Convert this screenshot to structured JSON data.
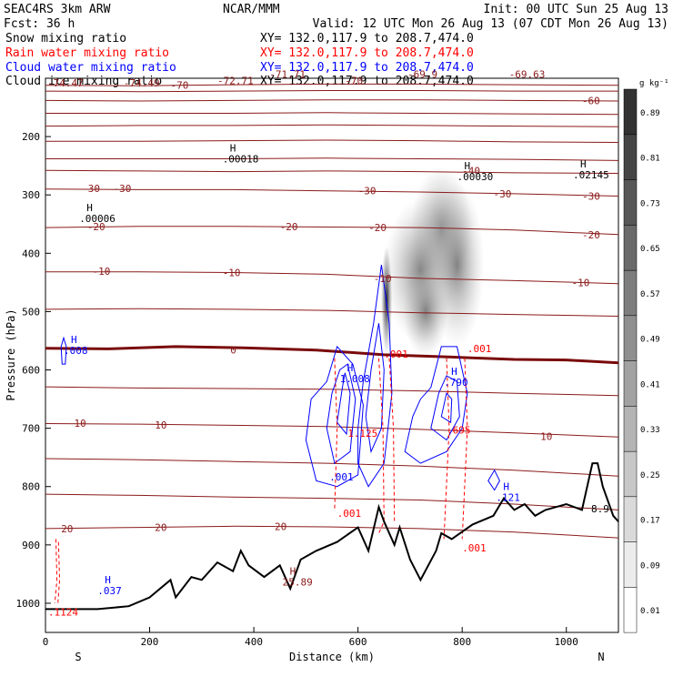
{
  "header": {
    "experiment": "SEAC4RS   3km ARW",
    "center": "NCAR/MMM",
    "init": "Init: 00 UTC Sun 25 Aug 13",
    "fcst": "Fcst:    36 h",
    "valid": "Valid: 12 UTC Mon 26 Aug 13 (07 CDT Mon 26 Aug 13)",
    "snow_label": "Snow mixing ratio",
    "snow_xy": "XY= 132.0,117.9 to 208.7,474.0",
    "rain_label": "Rain water mixing ratio",
    "rain_xy": "XY= 132.0,117.9 to 208.7,474.0",
    "cloud_label": "Cloud water mixing ratio",
    "cloud_xy": "XY= 132.0,117.9 to 208.7,474.0",
    "ice_label": "Cloud ice mixing ratio",
    "ice_xy": "XY= 132.0,117.9 to 208.7,474.0"
  },
  "colors": {
    "temperature": "#8b1a1a",
    "freezing": "#7a0a0a",
    "rain": "#ff0000",
    "cloud": "#0000ff",
    "terrain": "#000000"
  },
  "chart_data": {
    "type": "cross-section",
    "xlabel": "Distance (km)",
    "ylabel": "Pressure (hPa)",
    "xlim": [
      0,
      1100
    ],
    "ylim": [
      1050,
      100
    ],
    "xticks": [
      "0",
      "200",
      "400",
      "600",
      "800",
      "1000"
    ],
    "yticks": [
      "200",
      "300",
      "400",
      "500",
      "600",
      "700",
      "800",
      "900",
      "1000"
    ],
    "left_end": "S",
    "right_end": "N",
    "colorbar_unit": "g kg⁻¹",
    "colorbar_levels": [
      "0.01",
      "0.09",
      "0.17",
      "0.25",
      "0.33",
      "0.41",
      "0.49",
      "0.57",
      "0.65",
      "0.73",
      "0.81",
      "0.89"
    ],
    "temperature_labels": [
      {
        "text": "-74.47",
        "x": 0,
        "p": 108
      },
      {
        "text": "-74.49",
        "x": 150,
        "p": 108
      },
      {
        "text": "-70",
        "x": 240,
        "p": 112
      },
      {
        "text": "-72.71",
        "x": 330,
        "p": 104
      },
      {
        "text": "-71.71",
        "x": 430,
        "p": 93
      },
      {
        "text": "-70",
        "x": 575,
        "p": 104
      },
      {
        "text": "-69.9",
        "x": 695,
        "p": 93
      },
      {
        "text": "-69.63",
        "x": 890,
        "p": 93
      },
      {
        "text": "-60",
        "x": 1030,
        "p": 138
      },
      {
        "text": "-40",
        "x": 800,
        "p": 258
      },
      {
        "text": "-30",
        "x": 70,
        "p": 289
      },
      {
        "text": "-30",
        "x": 130,
        "p": 289
      },
      {
        "text": "-30",
        "x": 600,
        "p": 293
      },
      {
        "text": "-30",
        "x": 860,
        "p": 298
      },
      {
        "text": "-30",
        "x": 1050,
        "p": 302
      },
      {
        "text": "-20",
        "x": 80,
        "p": 354
      },
      {
        "text": "-20",
        "x": 450,
        "p": 354
      },
      {
        "text": "-20",
        "x": 620,
        "p": 356
      },
      {
        "text": "-20",
        "x": 1040,
        "p": 368
      },
      {
        "text": "-10",
        "x": 90,
        "p": 431
      },
      {
        "text": "-10",
        "x": 340,
        "p": 433
      },
      {
        "text": "-10",
        "x": 630,
        "p": 443
      },
      {
        "text": "-10",
        "x": 1010,
        "p": 450
      },
      {
        "text": "0",
        "x": 355,
        "p": 566
      },
      {
        "text": "10",
        "x": 55,
        "p": 691
      },
      {
        "text": "10",
        "x": 210,
        "p": 694
      },
      {
        "text": "10",
        "x": 950,
        "p": 714
      },
      {
        "text": "20",
        "x": 30,
        "p": 872
      },
      {
        "text": "20",
        "x": 210,
        "p": 870
      },
      {
        "text": "20",
        "x": 440,
        "p": 868
      }
    ],
    "highs": [
      {
        "symbol": "H",
        "value": ".00018",
        "x": 340,
        "p": 235,
        "color": "black"
      },
      {
        "symbol": "H",
        "value": ".00006",
        "x": 65,
        "p": 337,
        "color": "black"
      },
      {
        "symbol": "H",
        "value": ".00030",
        "x": 790,
        "p": 265,
        "color": "black"
      },
      {
        "symbol": "H",
        "value": ".02145",
        "x": 1045,
        "p": 262,
        "color": "black"
      },
      {
        "symbol": "H",
        "value": ".008",
        "x": 35,
        "p": 563,
        "color": "blue"
      },
      {
        "symbol": "H",
        "value": "1.008",
        "x": 565,
        "p": 612,
        "color": "blue"
      },
      {
        "symbol": "H",
        "value": ".790",
        "x": 765,
        "p": 618,
        "color": "blue"
      },
      {
        "symbol": "H",
        "value": ".121",
        "x": 865,
        "p": 815,
        "color": "blue"
      },
      {
        "symbol": "H",
        "value": ".037",
        "x": 100,
        "p": 975,
        "color": "blue"
      },
      {
        "symbol": "H",
        "value": "25.89",
        "x": 455,
        "p": 960,
        "color": "darkred"
      }
    ],
    "rain_labels": [
      {
        "text": ".001",
        "x": 650,
        "p": 573
      },
      {
        "text": ".001",
        "x": 810,
        "p": 563
      },
      {
        "text": ".001",
        "x": 560,
        "p": 846
      },
      {
        "text": ".001",
        "x": 800,
        "p": 905
      },
      {
        "text": "1.125",
        "x": 580,
        "p": 708
      },
      {
        "text": ".695",
        "x": 770,
        "p": 703
      },
      {
        "text": ".1124",
        "x": 5,
        "p": 1015
      }
    ],
    "other_labels": [
      {
        "text": ".001",
        "x": 545,
        "p": 783,
        "color": "blue"
      },
      {
        "text": "8.9",
        "x": 1070,
        "p": 838,
        "color": "black"
      }
    ]
  }
}
